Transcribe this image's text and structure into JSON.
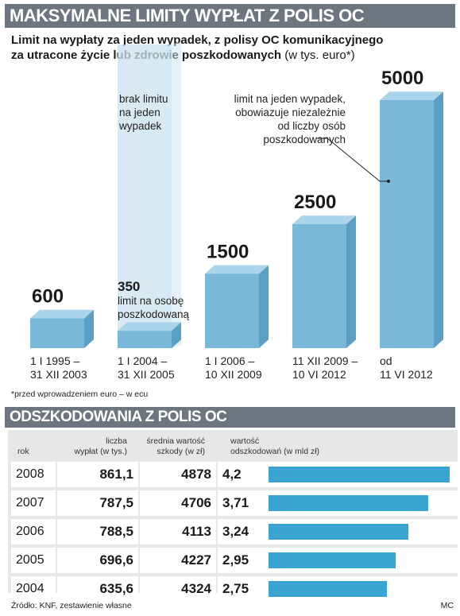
{
  "title": "MAKSYMALNE LIMITY WYPŁAT Z POLIS OC",
  "subtitle": {
    "line1": "Limit na wypłaty za jeden wypadek, z polisy OC komunikacyjnego",
    "line2": "za utracone życie lub zdrowie poszkodowanych",
    "unit": "(w tys. euro*)"
  },
  "annotations": {
    "no_limit": [
      "brak limitu",
      "na jeden",
      "wypadek"
    ],
    "per_person": [
      "limit na osobę",
      "poszkodowaną"
    ],
    "per_accident": [
      "limit na jeden wypadek,",
      "obowiazuje niezależnie",
      "od liczby osób",
      "poszkodowanych"
    ]
  },
  "footnote": "*przed wprowadzeniem euro – w ecu",
  "chart_data": [
    {
      "type": "bar",
      "title": "MAKSYMALNE LIMITY WYPŁAT Z POLIS OC",
      "categories": [
        [
          "1 I 1995 –",
          "31 XII 2003"
        ],
        [
          "1 I 2004 –",
          "31 XII 2005"
        ],
        [
          "1 I 2006 –",
          "10 XII 2009"
        ],
        [
          "11 XII 2009 –",
          "10 VI 2012"
        ],
        [
          "od",
          "11 VI 2012"
        ]
      ],
      "values": [
        600,
        350,
        1500,
        2500,
        5000
      ],
      "labels": [
        "600",
        "350",
        "1500",
        "2500",
        "5000"
      ],
      "ylim": [
        0,
        5000
      ],
      "colors": {
        "front": "#79b8d8",
        "top": "#a9d4ea",
        "side": "#5b9fc4",
        "ghost": "#c9e3ef"
      }
    },
    {
      "type": "table",
      "title": "ODSZKODOWANIA Z POLIS OC",
      "columns": [
        "rok",
        "liczba wypłat (w tys.)",
        "średnia wartość szkody (w zł)",
        "wartość odszkodowań (w mld zł)"
      ],
      "column_lines": {
        "rok": [
          "rok"
        ],
        "liczba": [
          "liczba",
          "wypłat (w tys.)"
        ],
        "srednia": [
          "średnia wartość",
          "szkody (w zł)"
        ],
        "wartosc": [
          "wartość",
          "odszkodowań (w mld zł)"
        ]
      },
      "rows": [
        {
          "rok": "2008",
          "liczba": "861,1",
          "srednia": "4878",
          "wartosc": "4,2",
          "value": 4.2
        },
        {
          "rok": "2007",
          "liczba": "787,5",
          "srednia": "4706",
          "wartosc": "3,71",
          "value": 3.71
        },
        {
          "rok": "2006",
          "liczba": "788,5",
          "srednia": "4113",
          "wartosc": "3,24",
          "value": 3.24
        },
        {
          "rok": "2005",
          "liczba": "696,6",
          "srednia": "4227",
          "wartosc": "2,95",
          "value": 2.95
        },
        {
          "rok": "2004",
          "liczba": "635,6",
          "srednia": "4324",
          "wartosc": "2,75",
          "value": 2.75
        }
      ],
      "bar_color": "#3aa4d2",
      "bar_max": 4.2
    }
  ],
  "source": "Źródło: KNF, zestawienie własne",
  "credit": "MC"
}
